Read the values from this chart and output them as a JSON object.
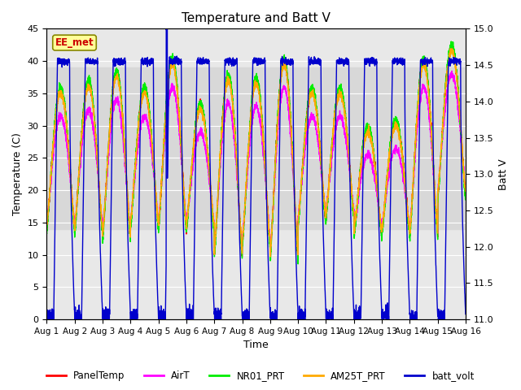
{
  "title": "Temperature and Batt V",
  "xlabel": "Time",
  "ylabel_left": "Temperature (C)",
  "ylabel_right": "Batt V",
  "ylim_left": [
    0,
    45
  ],
  "ylim_right": [
    11.0,
    15.0
  ],
  "xlim": [
    0,
    15
  ],
  "xtick_labels": [
    "Aug 1",
    "Aug 2",
    "Aug 3",
    "Aug 4",
    "Aug 5",
    "Aug 6",
    "Aug 7",
    "Aug 8",
    "Aug 9",
    "Aug 10",
    "Aug 11",
    "Aug 12",
    "Aug 13",
    "Aug 14",
    "Aug 15",
    "Aug 16"
  ],
  "xtick_positions": [
    0,
    1,
    2,
    3,
    4,
    5,
    6,
    7,
    8,
    9,
    10,
    11,
    12,
    13,
    14,
    15
  ],
  "shaded_ymin": 14,
  "shaded_ymax": 39,
  "station_label": "EE_met",
  "colors": {
    "PanelTemp": "#ff0000",
    "AirT": "#ff00ff",
    "NR01_PRT": "#00ee00",
    "AM25T_PRT": "#ffaa00",
    "batt_volt": "#0000cc"
  },
  "line_width": 1.0,
  "fig_bg": "#ffffff",
  "plot_bg": "#e8e8e8",
  "shaded_color": "#d8d8d8",
  "n_days": 15,
  "panel_peaks": [
    35.5,
    36.5,
    38.0,
    35.5,
    40.0,
    33.0,
    37.5,
    37.0,
    40.0,
    35.5,
    35.5,
    29.5,
    30.5,
    40.0,
    42.0
  ],
  "panel_lows": [
    14.0,
    13.5,
    12.5,
    14.5,
    14.0,
    14.0,
    10.0,
    11.5,
    9.5,
    15.0,
    16.0,
    13.0,
    13.5,
    13.0,
    19.0
  ],
  "batt_high": 14.55,
  "batt_low": 11.05,
  "batt_spike_day": 5,
  "batt_spike_val": 42.5
}
